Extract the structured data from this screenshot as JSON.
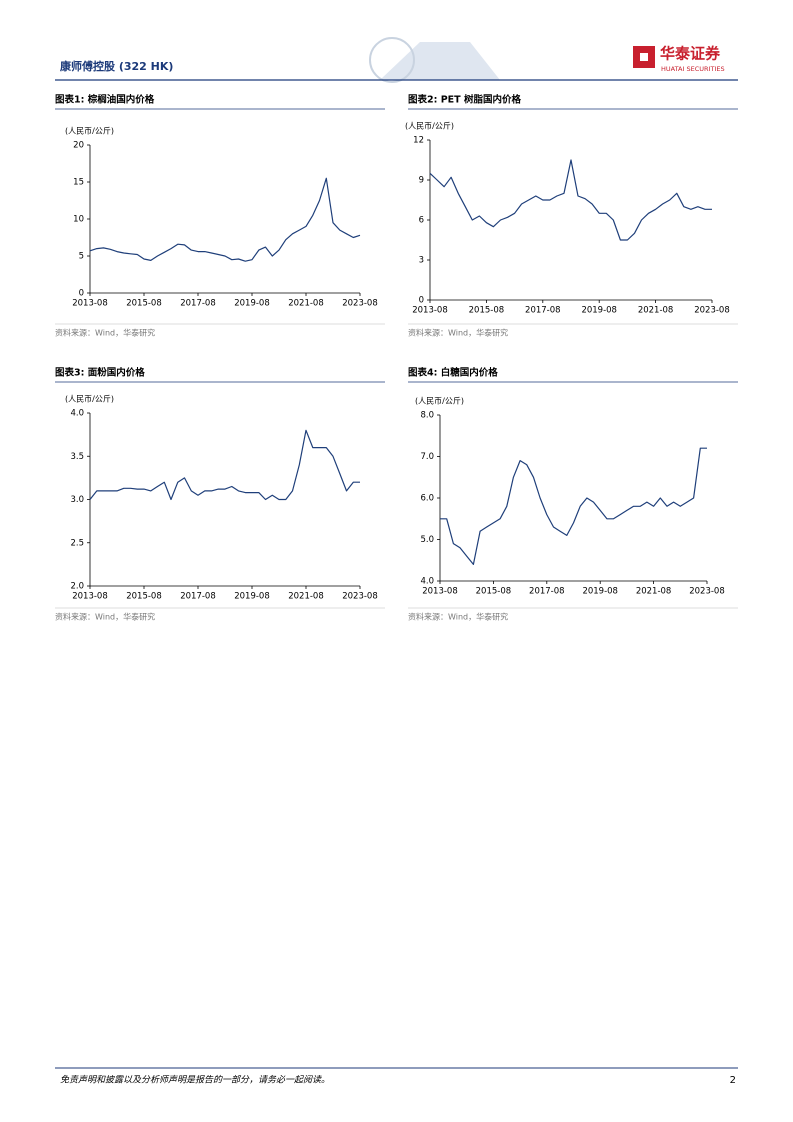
{
  "header": {
    "company": "康师傅控股 (322 HK)",
    "logo_cn": "华泰证券",
    "logo_en": "HUATAI SECURITIES"
  },
  "footer": {
    "disclaimer": "免责声明和披露以及分析师声明是报告的一部分，请务必一起阅读。",
    "page": "2"
  },
  "chart_data": [
    {
      "type": "line",
      "title": "图表1:  棕榈油国内价格",
      "y_label": "(人民币/公斤)",
      "source": "资料来源：Wind，华泰研究",
      "color": "#1f3f7a",
      "x": [
        "2013-08",
        "2013-11",
        "2014-02",
        "2014-05",
        "2014-08",
        "2014-11",
        "2015-02",
        "2015-05",
        "2015-08",
        "2015-11",
        "2016-02",
        "2016-05",
        "2016-08",
        "2016-11",
        "2017-02",
        "2017-05",
        "2017-08",
        "2017-11",
        "2018-02",
        "2018-05",
        "2018-08",
        "2018-11",
        "2019-02",
        "2019-05",
        "2019-08",
        "2019-11",
        "2020-02",
        "2020-05",
        "2020-08",
        "2020-11",
        "2021-02",
        "2021-05",
        "2021-08",
        "2021-11",
        "2022-02",
        "2022-05",
        "2022-08",
        "2022-11",
        "2023-02",
        "2023-05",
        "2023-08"
      ],
      "values": [
        5.7,
        6.0,
        6.1,
        5.9,
        5.6,
        5.4,
        5.3,
        5.2,
        4.6,
        4.4,
        5.0,
        5.5,
        6.0,
        6.6,
        6.5,
        5.8,
        5.6,
        5.6,
        5.4,
        5.2,
        5.0,
        4.5,
        4.6,
        4.3,
        4.5,
        5.8,
        6.2,
        5.0,
        5.8,
        7.2,
        8.0,
        8.5,
        9.0,
        10.5,
        12.5,
        15.5,
        9.5,
        8.5,
        8.0,
        7.5,
        7.8
      ],
      "xlim": [
        "2013-08",
        "2023-08"
      ],
      "xticks": [
        "2013-08",
        "2015-08",
        "2017-08",
        "2019-08",
        "2021-08",
        "2023-08"
      ],
      "ylim": [
        0,
        20
      ],
      "yticks": [
        0,
        5,
        10,
        15,
        20
      ]
    },
    {
      "type": "line",
      "title": "图表2:  PET 树脂国内价格",
      "y_label": "(人民币/公斤)",
      "source": "资料来源：Wind，华泰研究",
      "color": "#1f3f7a",
      "x": [
        "2013-08",
        "2013-11",
        "2014-02",
        "2014-05",
        "2014-08",
        "2014-11",
        "2015-02",
        "2015-05",
        "2015-08",
        "2015-11",
        "2016-02",
        "2016-05",
        "2016-08",
        "2016-11",
        "2017-02",
        "2017-05",
        "2017-08",
        "2017-11",
        "2018-02",
        "2018-05",
        "2018-08",
        "2018-11",
        "2019-02",
        "2019-05",
        "2019-08",
        "2019-11",
        "2020-02",
        "2020-05",
        "2020-08",
        "2020-11",
        "2021-02",
        "2021-05",
        "2021-08",
        "2021-11",
        "2022-02",
        "2022-05",
        "2022-08",
        "2022-11",
        "2023-02",
        "2023-05",
        "2023-08"
      ],
      "values": [
        9.5,
        9.0,
        8.5,
        9.2,
        8.0,
        7.0,
        6.0,
        6.3,
        5.8,
        5.5,
        6.0,
        6.2,
        6.5,
        7.2,
        7.5,
        7.8,
        7.5,
        7.5,
        7.8,
        8.0,
        10.5,
        7.8,
        7.6,
        7.2,
        6.5,
        6.5,
        6.0,
        4.5,
        4.5,
        5.0,
        6.0,
        6.5,
        6.8,
        7.2,
        7.5,
        8.0,
        7.0,
        6.8,
        7.0,
        6.8,
        6.8
      ],
      "xlim": [
        "2013-08",
        "2023-08"
      ],
      "xticks": [
        "2013-08",
        "2015-08",
        "2017-08",
        "2019-08",
        "2021-08",
        "2023-08"
      ],
      "ylim": [
        0,
        12
      ],
      "yticks": [
        0,
        3,
        6,
        9,
        12
      ]
    },
    {
      "type": "line",
      "title": "图表3:  面粉国内价格",
      "y_label": "(人民币/公斤)",
      "source": "资料来源：Wind，华泰研究",
      "color": "#1f3f7a",
      "x": [
        "2013-08",
        "2013-11",
        "2014-02",
        "2014-05",
        "2014-08",
        "2014-11",
        "2015-02",
        "2015-05",
        "2015-08",
        "2015-11",
        "2016-02",
        "2016-05",
        "2016-08",
        "2016-11",
        "2017-02",
        "2017-05",
        "2017-08",
        "2017-11",
        "2018-02",
        "2018-05",
        "2018-08",
        "2018-11",
        "2019-02",
        "2019-05",
        "2019-08",
        "2019-11",
        "2020-02",
        "2020-05",
        "2020-08",
        "2020-11",
        "2021-02",
        "2021-05",
        "2021-08",
        "2021-11",
        "2022-02",
        "2022-05",
        "2022-08",
        "2022-11",
        "2023-02",
        "2023-05",
        "2023-08"
      ],
      "values": [
        3.0,
        3.1,
        3.1,
        3.1,
        3.1,
        3.13,
        3.13,
        3.12,
        3.12,
        3.1,
        3.15,
        3.2,
        3.0,
        3.2,
        3.25,
        3.1,
        3.05,
        3.1,
        3.1,
        3.12,
        3.12,
        3.15,
        3.1,
        3.08,
        3.08,
        3.08,
        3.0,
        3.05,
        3.0,
        3.0,
        3.1,
        3.4,
        3.8,
        3.6,
        3.6,
        3.6,
        3.5,
        3.3,
        3.1,
        3.2,
        3.2
      ],
      "xlim": [
        "2013-08",
        "2023-08"
      ],
      "xticks": [
        "2013-08",
        "2015-08",
        "2017-08",
        "2019-08",
        "2021-08",
        "2023-08"
      ],
      "ylim": [
        2,
        4
      ],
      "yticks": [
        {
          "value": 2,
          "label": "2.0"
        },
        {
          "value": 2.5,
          "label": "2.5"
        },
        {
          "value": 3,
          "label": "3.0"
        },
        {
          "value": 3.5,
          "label": "3.5"
        },
        {
          "value": 4,
          "label": "4.0"
        }
      ]
    },
    {
      "type": "line",
      "title": "图表4:  白糖国内价格",
      "y_label": "(人民币/公斤)",
      "source": "资料来源：Wind，华泰研究",
      "color": "#1f3f7a",
      "x": [
        "2013-08",
        "2013-11",
        "2014-02",
        "2014-05",
        "2014-08",
        "2014-11",
        "2015-02",
        "2015-05",
        "2015-08",
        "2015-11",
        "2016-02",
        "2016-05",
        "2016-08",
        "2016-11",
        "2017-02",
        "2017-05",
        "2017-08",
        "2017-11",
        "2018-02",
        "2018-05",
        "2018-08",
        "2018-11",
        "2019-02",
        "2019-05",
        "2019-08",
        "2019-11",
        "2020-02",
        "2020-05",
        "2020-08",
        "2020-11",
        "2021-02",
        "2021-05",
        "2021-08",
        "2021-11",
        "2022-02",
        "2022-05",
        "2022-08",
        "2022-11",
        "2023-02",
        "2023-05",
        "2023-08"
      ],
      "values": [
        5.5,
        5.5,
        4.9,
        4.8,
        4.6,
        4.4,
        5.2,
        5.3,
        5.4,
        5.5,
        5.8,
        6.5,
        6.9,
        6.8,
        6.5,
        6.0,
        5.6,
        5.3,
        5.2,
        5.1,
        5.4,
        5.8,
        6.0,
        5.9,
        5.7,
        5.5,
        5.5,
        5.6,
        5.7,
        5.8,
        5.8,
        5.9,
        5.8,
        6.0,
        5.8,
        5.9,
        5.8,
        5.9,
        6.0,
        7.2,
        7.2
      ],
      "xlim": [
        "2013-08",
        "2023-08"
      ],
      "xticks": [
        "2013-08",
        "2015-08",
        "2017-08",
        "2019-08",
        "2021-08",
        "2023-08"
      ],
      "ylim": [
        4,
        8
      ],
      "yticks": [
        {
          "value": 4,
          "label": "4.0"
        },
        {
          "value": 5,
          "label": "5.0"
        },
        {
          "value": 6,
          "label": "6.0"
        },
        {
          "value": 7,
          "label": "7.0"
        },
        {
          "value": 8,
          "label": "8.0"
        }
      ]
    }
  ]
}
